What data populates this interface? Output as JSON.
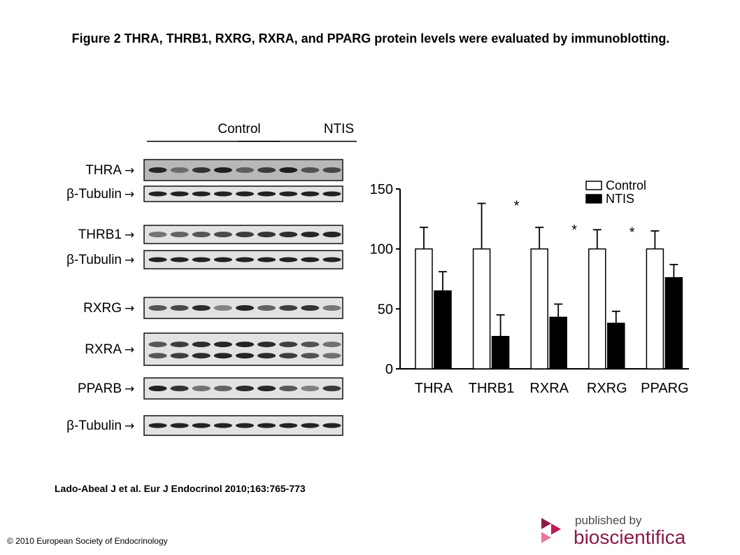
{
  "figure": {
    "title": "Figure 2 THRA, THRB1, RXRG, RXRA, and PPARG protein levels were evaluated by immunoblotting.",
    "citation": "Lado-Abeal J et al. Eur J Endocrinol 2010;163:765-773",
    "copyright": "© 2010 European Society of Endocrinology",
    "publisher_line1": "published by",
    "publisher_line2": "bioscientifica"
  },
  "blot": {
    "group_labels": [
      "Control",
      "NTIS"
    ],
    "rows": [
      {
        "label": "THRA"
      },
      {
        "label": "β-Tubulin"
      },
      {
        "label": "THRB1"
      },
      {
        "label": "β-Tubulin"
      },
      {
        "label": "RXRG"
      },
      {
        "label": "RXRA"
      },
      {
        "label": "PPARB"
      },
      {
        "label": "β-Tubulin"
      }
    ],
    "arrow": "→"
  },
  "chart_data": {
    "type": "bar",
    "categories": [
      "THRA",
      "THRB1",
      "RXRA",
      "RXRG",
      "PPARG"
    ],
    "series": [
      {
        "name": "Control",
        "values": [
          100,
          100,
          100,
          100,
          100
        ],
        "errors": [
          18,
          38,
          18,
          16,
          15
        ],
        "color": "#ffffff"
      },
      {
        "name": "NTIS",
        "values": [
          65,
          27,
          43,
          38,
          76
        ],
        "errors": [
          16,
          18,
          11,
          10,
          11
        ],
        "color": "#000000"
      }
    ],
    "significance": [
      "",
      "*",
      "*",
      "*",
      ""
    ],
    "ylim": [
      0,
      150
    ],
    "yticks": [
      0,
      50,
      100,
      150
    ],
    "legend_position": "top-right",
    "grid": false
  }
}
